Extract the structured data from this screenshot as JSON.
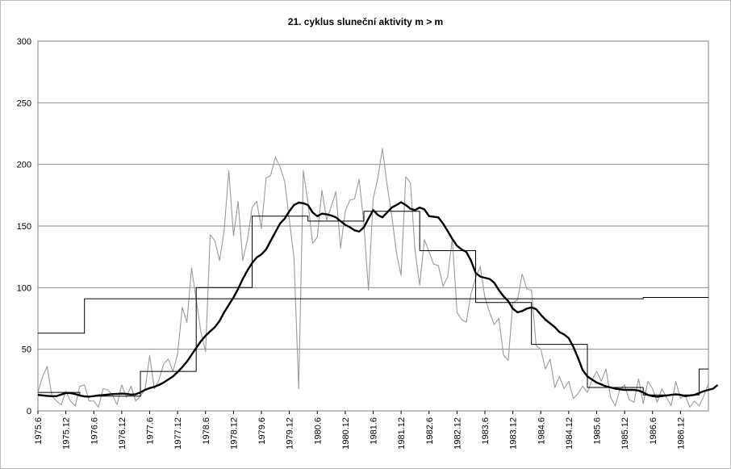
{
  "chart_data": {
    "type": "line",
    "title": "21. cyklus sluneční aktivity  m > m",
    "xlabel": "",
    "ylabel": "",
    "ylim": [
      0,
      300
    ],
    "yticks": [
      0,
      50,
      100,
      150,
      200,
      250,
      300
    ],
    "xlim": [
      "1975.6",
      "1987.3"
    ],
    "xticks": [
      "1975.6",
      "1975.12",
      "1976.6",
      "1976.12",
      "1977.6",
      "1977.12",
      "1978.6",
      "1978.12",
      "1979.6",
      "1979.12",
      "1980.6",
      "1980.12",
      "1981.6",
      "1981.12",
      "1982.6",
      "1982.12",
      "1983.6",
      "1983.12",
      "1984.6",
      "1984.12",
      "1985.6",
      "1985.12",
      "1986.6",
      "1986.12"
    ],
    "grid": "horizontal",
    "legend": "none",
    "series": [
      {
        "style": "monthly",
        "color": "#9a9a9a",
        "values": [
          15,
          28,
          36,
          12,
          8,
          5,
          16,
          8,
          4,
          20,
          21,
          8,
          8,
          3,
          18,
          17,
          13,
          5,
          21,
          11,
          20,
          8,
          12,
          17,
          45,
          18,
          25,
          38,
          42,
          32,
          46,
          84,
          72,
          116,
          90,
          64,
          48,
          143,
          138,
          122,
          146,
          195,
          142,
          170,
          122,
          139,
          165,
          170,
          148,
          189,
          191,
          206,
          198,
          186,
          155,
          124,
          18,
          195,
          169,
          136,
          141,
          179,
          155,
          166,
          178,
          132,
          162,
          171,
          172,
          188,
          151,
          98,
          172,
          189,
          213,
          183,
          158,
          128,
          110,
          190,
          185,
          130,
          102,
          139,
          129,
          119,
          118,
          101,
          109,
          140,
          80,
          74,
          72,
          95,
          108,
          117,
          92,
          80,
          70,
          75,
          45,
          41,
          88,
          90,
          111,
          99,
          98,
          53,
          50,
          34,
          42,
          19,
          28,
          18,
          24,
          10,
          14,
          20,
          15,
          25,
          32,
          24,
          34,
          11,
          4,
          18,
          21,
          9,
          7,
          26,
          6,
          24,
          18,
          7,
          18,
          11,
          4,
          24,
          10,
          13,
          3,
          8,
          4,
          12,
          22
        ]
      },
      {
        "style": "smoothed",
        "color": "#000000",
        "values": [
          13,
          12.6,
          12.2,
          11.9,
          12,
          13.2,
          14.5,
          14.5,
          13.6,
          12.5,
          11.8,
          11.5,
          12,
          12.6,
          12.8,
          13.2,
          13.6,
          13.8,
          14,
          13.8,
          13.2,
          13.5,
          15,
          17,
          18.5,
          19.5,
          21,
          23,
          25.5,
          28,
          31.5,
          35.5,
          40,
          45.5,
          51,
          56.5,
          61,
          64.5,
          68,
          73,
          80,
          86,
          92,
          99,
          107,
          114,
          120,
          124.5,
          127,
          131,
          138,
          145,
          152,
          156,
          162,
          167,
          169,
          168.5,
          167,
          161,
          158,
          160,
          159.5,
          158.5,
          157,
          154,
          151,
          149,
          146.5,
          145.5,
          149,
          156,
          163,
          159,
          157,
          161,
          165,
          167,
          169.3,
          167,
          164,
          163,
          165,
          163.5,
          158,
          157.5,
          157,
          152,
          146,
          139.5,
          134,
          131,
          129,
          122,
          112,
          109,
          108,
          107,
          104,
          98,
          93,
          89,
          83,
          80,
          81,
          83,
          84,
          82.5,
          78,
          74,
          71,
          68,
          64,
          62,
          59,
          52,
          43,
          33,
          28,
          25.5,
          23,
          21.5,
          20,
          19,
          18,
          17.5,
          17,
          17,
          17,
          16.5,
          15,
          13,
          12,
          11.5,
          12,
          12.5,
          13,
          13.5,
          13,
          12,
          12.5,
          13,
          14.5,
          16,
          17,
          18,
          21
        ]
      },
      {
        "style": "step",
        "color": "#000000",
        "values": [
          63,
          63,
          63,
          63,
          63,
          63,
          63,
          63,
          63,
          63,
          91,
          91,
          91,
          91,
          91,
          91,
          91,
          91,
          91,
          91,
          91,
          91,
          91,
          91,
          91,
          91,
          91,
          91,
          91,
          91,
          91,
          91,
          91,
          91,
          91,
          91,
          91,
          91,
          91,
          91,
          91,
          91,
          91,
          91,
          91,
          91,
          91,
          91,
          91,
          91,
          91,
          91,
          91,
          91,
          91,
          91,
          91,
          91,
          91,
          91,
          91,
          91,
          91,
          91,
          91,
          91,
          91,
          91,
          91,
          91,
          91,
          91,
          91,
          91,
          91,
          91,
          91,
          91,
          91,
          91,
          91,
          91,
          91,
          91,
          91,
          91,
          91,
          91,
          91,
          91,
          91,
          91,
          91,
          91,
          91,
          91,
          91,
          91,
          91,
          91,
          91,
          91,
          91,
          91,
          91,
          91,
          91,
          91,
          91,
          91,
          91,
          91,
          91,
          91,
          91,
          91,
          91,
          91,
          91,
          91,
          91,
          91,
          91,
          91,
          91,
          91,
          91,
          91,
          91,
          91,
          92,
          92,
          92,
          92,
          92,
          92,
          92,
          92,
          92,
          92,
          92,
          92,
          92,
          92
        ]
      },
      {
        "style": "step",
        "color": "#000000",
        "values": [
          15,
          15,
          15,
          15,
          15,
          15,
          15,
          15,
          15,
          12,
          12,
          12,
          12,
          12,
          12,
          12,
          12,
          12,
          12,
          12,
          12,
          12,
          32,
          32,
          32,
          32,
          32,
          32,
          32,
          32,
          32,
          32,
          32,
          32,
          100,
          100,
          100,
          100,
          100,
          100,
          100,
          100,
          100,
          100,
          100,
          100,
          158,
          158,
          158,
          158,
          158,
          158,
          158,
          158,
          158,
          158,
          158,
          158,
          154,
          154,
          154,
          154,
          154,
          154,
          154,
          154,
          154,
          154,
          154,
          154,
          162,
          162,
          162,
          162,
          162,
          162,
          162,
          162,
          162,
          162,
          162,
          162,
          130,
          130,
          130,
          130,
          130,
          130,
          130,
          130,
          130,
          130,
          130,
          130,
          88,
          88,
          88,
          88,
          88,
          88,
          88,
          88,
          88,
          88,
          88,
          88,
          54,
          54,
          54,
          54,
          54,
          54,
          54,
          54,
          54,
          54,
          54,
          54,
          19,
          19,
          19,
          19,
          19,
          19,
          19,
          19,
          19,
          19,
          19,
          19,
          13,
          13,
          13,
          13,
          13,
          13,
          13,
          13,
          13,
          13,
          13,
          13,
          34,
          34,
          34
        ]
      }
    ]
  }
}
